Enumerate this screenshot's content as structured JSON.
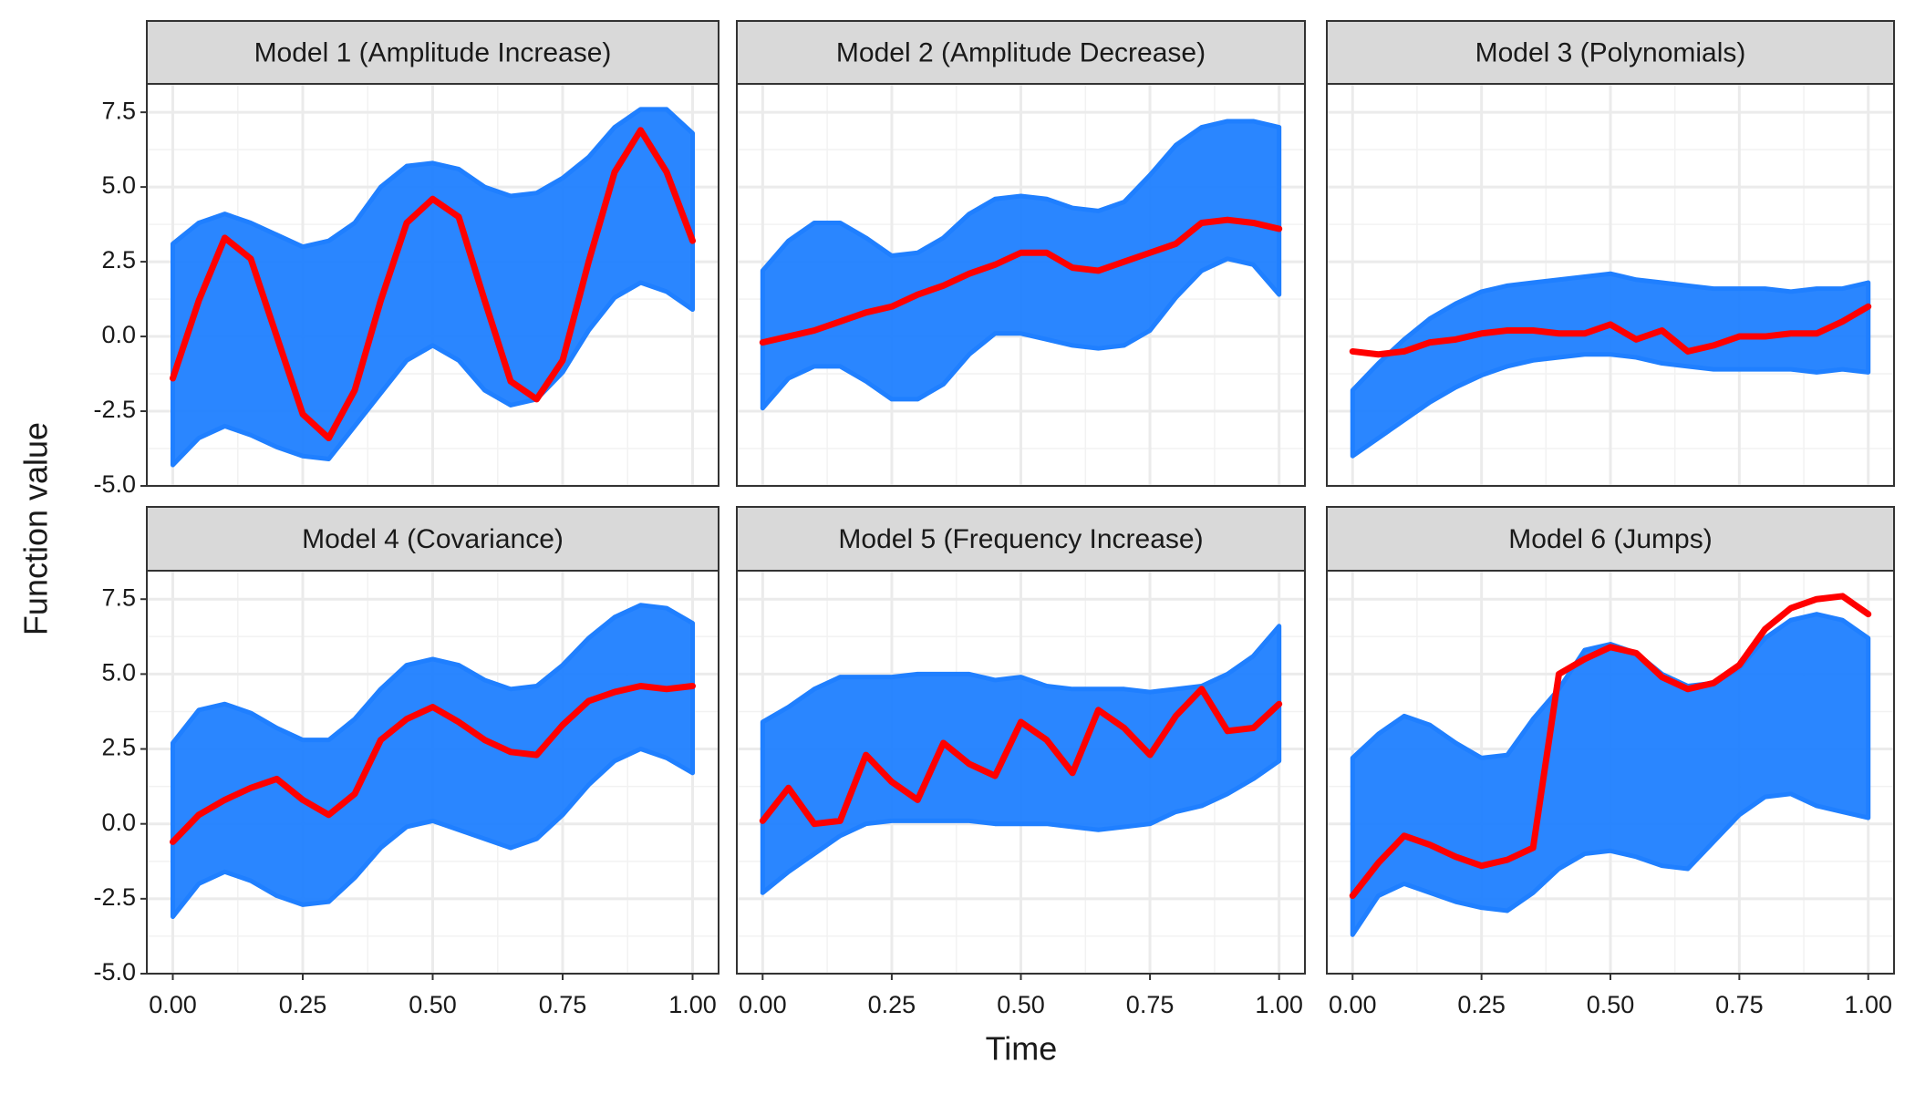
{
  "axes": {
    "xlabel": "Time",
    "ylabel": "Function value",
    "xlim": [
      -0.05,
      1.05
    ],
    "ylim": [
      -5,
      8.45
    ],
    "xticks": [
      {
        "value": 0,
        "label": "0.00"
      },
      {
        "value": 0.25,
        "label": "0.25"
      },
      {
        "value": 0.5,
        "label": "0.50"
      },
      {
        "value": 0.75,
        "label": "0.75"
      },
      {
        "value": 1,
        "label": "1.00"
      }
    ],
    "yticks": [
      {
        "value": -5,
        "label": "-5.0"
      },
      -2.5,
      {
        "value": 0,
        "label": "0.0"
      },
      2.5,
      {
        "value": 5,
        "label": "5.0"
      },
      7.5
    ],
    "grid": true
  },
  "chart_data": [
    {
      "type": "line",
      "title": "Model 1 (Amplitude Increase)",
      "band_color": "#1f7fff",
      "color": "#ff0000",
      "x": [
        0,
        0.05,
        0.1,
        0.15,
        0.2,
        0.25,
        0.3,
        0.35,
        0.4,
        0.45,
        0.5,
        0.55,
        0.6,
        0.65,
        0.7,
        0.75,
        0.8,
        0.85,
        0.9,
        0.95,
        1
      ],
      "upper": [
        3.1,
        3.8,
        4.1,
        3.8,
        3.4,
        3.0,
        3.2,
        3.8,
        5.0,
        5.7,
        5.8,
        5.6,
        5.0,
        4.7,
        4.8,
        5.3,
        6.0,
        7.0,
        7.6,
        7.6,
        6.8
      ],
      "lower": [
        -4.3,
        -3.4,
        -3.0,
        -3.3,
        -3.7,
        -4.0,
        -4.1,
        -3.0,
        -1.9,
        -0.8,
        -0.3,
        -0.8,
        -1.8,
        -2.3,
        -2.1,
        -1.2,
        0.2,
        1.3,
        1.8,
        1.5,
        0.9
      ],
      "values": [
        -1.4,
        1.2,
        3.3,
        2.6,
        0,
        -2.6,
        -3.4,
        -1.8,
        1.2,
        3.8,
        4.6,
        4.0,
        1.2,
        -1.5,
        -2.1,
        -0.8,
        2.5,
        5.5,
        6.9,
        5.5,
        3.2
      ]
    },
    {
      "type": "line",
      "title": "Model 2 (Amplitude Decrease)",
      "band_color": "#1f7fff",
      "color": "#ff0000",
      "x": [
        0,
        0.05,
        0.1,
        0.15,
        0.2,
        0.25,
        0.3,
        0.35,
        0.4,
        0.45,
        0.5,
        0.55,
        0.6,
        0.65,
        0.7,
        0.75,
        0.8,
        0.85,
        0.9,
        0.95,
        1
      ],
      "upper": [
        2.2,
        3.2,
        3.8,
        3.8,
        3.3,
        2.7,
        2.8,
        3.3,
        4.1,
        4.6,
        4.7,
        4.6,
        4.3,
        4.2,
        4.5,
        5.4,
        6.4,
        7.0,
        7.2,
        7.2,
        7.0
      ],
      "lower": [
        -2.4,
        -1.4,
        -1.0,
        -1.0,
        -1.5,
        -2.1,
        -2.1,
        -1.6,
        -0.6,
        0.1,
        0.1,
        -0.1,
        -0.3,
        -0.4,
        -0.3,
        0.2,
        1.3,
        2.2,
        2.6,
        2.4,
        1.4
      ],
      "values": [
        -0.2,
        0,
        0.2,
        0.5,
        0.8,
        1.0,
        1.4,
        1.7,
        2.1,
        2.4,
        2.8,
        2.8,
        2.3,
        2.2,
        2.5,
        2.8,
        3.1,
        3.8,
        3.9,
        3.8,
        3.6
      ]
    },
    {
      "type": "line",
      "title": "Model 3 (Polynomials)",
      "band_color": "#1f7fff",
      "color": "#ff0000",
      "x": [
        0,
        0.05,
        0.1,
        0.15,
        0.2,
        0.25,
        0.3,
        0.35,
        0.4,
        0.45,
        0.5,
        0.55,
        0.6,
        0.65,
        0.7,
        0.75,
        0.8,
        0.85,
        0.9,
        0.95,
        1
      ],
      "upper": [
        -1.8,
        -0.9,
        -0.1,
        0.6,
        1.1,
        1.5,
        1.7,
        1.8,
        1.9,
        2.0,
        2.1,
        1.9,
        1.8,
        1.7,
        1.6,
        1.6,
        1.6,
        1.5,
        1.6,
        1.6,
        1.8
      ],
      "lower": [
        -4.0,
        -3.4,
        -2.8,
        -2.2,
        -1.7,
        -1.3,
        -1.0,
        -0.8,
        -0.7,
        -0.6,
        -0.6,
        -0.7,
        -0.9,
        -1.0,
        -1.1,
        -1.1,
        -1.1,
        -1.1,
        -1.2,
        -1.1,
        -1.2
      ],
      "values": [
        -0.5,
        -0.6,
        -0.5,
        -0.2,
        -0.1,
        0.1,
        0.2,
        0.2,
        0.1,
        0.1,
        0.4,
        -0.1,
        0.2,
        -0.5,
        -0.3,
        0,
        0,
        0.1,
        0.1,
        0.5,
        1.0
      ]
    },
    {
      "type": "line",
      "title": "Model 4 (Covariance)",
      "band_color": "#1f7fff",
      "color": "#ff0000",
      "x": [
        0,
        0.05,
        0.1,
        0.15,
        0.2,
        0.25,
        0.3,
        0.35,
        0.4,
        0.45,
        0.5,
        0.55,
        0.6,
        0.65,
        0.7,
        0.75,
        0.8,
        0.85,
        0.9,
        0.95,
        1
      ],
      "upper": [
        2.7,
        3.8,
        4.0,
        3.7,
        3.2,
        2.8,
        2.8,
        3.5,
        4.5,
        5.3,
        5.5,
        5.3,
        4.8,
        4.5,
        4.6,
        5.3,
        6.2,
        6.9,
        7.3,
        7.2,
        6.7
      ],
      "lower": [
        -3.1,
        -2.0,
        -1.6,
        -1.9,
        -2.4,
        -2.7,
        -2.6,
        -1.8,
        -0.8,
        -0.1,
        0.1,
        -0.2,
        -0.5,
        -0.8,
        -0.5,
        0.3,
        1.3,
        2.1,
        2.5,
        2.2,
        1.7
      ],
      "values": [
        -0.6,
        0.3,
        0.8,
        1.2,
        1.5,
        0.8,
        0.3,
        1.0,
        2.8,
        3.5,
        3.9,
        3.4,
        2.8,
        2.4,
        2.3,
        3.3,
        4.1,
        4.4,
        4.6,
        4.5,
        4.6
      ]
    },
    {
      "type": "line",
      "title": "Model 5 (Frequency Increase)",
      "band_color": "#1f7fff",
      "color": "#ff0000",
      "x": [
        0,
        0.05,
        0.1,
        0.15,
        0.2,
        0.25,
        0.3,
        0.35,
        0.4,
        0.45,
        0.5,
        0.55,
        0.6,
        0.65,
        0.7,
        0.75,
        0.8,
        0.85,
        0.9,
        0.95,
        1
      ],
      "upper": [
        3.4,
        3.9,
        4.5,
        4.9,
        4.9,
        4.9,
        5.0,
        5.0,
        5.0,
        4.8,
        4.9,
        4.6,
        4.5,
        4.5,
        4.5,
        4.4,
        4.5,
        4.6,
        5.0,
        5.6,
        6.6
      ],
      "lower": [
        -2.3,
        -1.6,
        -1.0,
        -0.4,
        0.0,
        0.1,
        0.1,
        0.1,
        0.1,
        0.0,
        0.0,
        0.0,
        -0.1,
        -0.2,
        -0.1,
        0.0,
        0.4,
        0.6,
        1.0,
        1.5,
        2.1
      ],
      "values": [
        0.1,
        1.2,
        0,
        0.1,
        2.3,
        1.4,
        0.8,
        2.7,
        2.0,
        1.6,
        3.4,
        2.8,
        1.7,
        3.8,
        3.2,
        2.3,
        3.6,
        4.5,
        3.1,
        3.2,
        4.0
      ]
    },
    {
      "type": "line",
      "title": "Model 6 (Jumps)",
      "band_color": "#1f7fff",
      "color": "#ff0000",
      "x": [
        0,
        0.05,
        0.1,
        0.15,
        0.2,
        0.25,
        0.3,
        0.35,
        0.4,
        0.45,
        0.5,
        0.55,
        0.6,
        0.65,
        0.7,
        0.75,
        0.8,
        0.85,
        0.9,
        0.95,
        1
      ],
      "upper": [
        2.2,
        3.0,
        3.6,
        3.3,
        2.7,
        2.2,
        2.3,
        3.5,
        4.5,
        5.8,
        6.0,
        5.7,
        5.0,
        4.6,
        4.7,
        5.2,
        6.2,
        6.8,
        7.0,
        6.8,
        6.2
      ],
      "lower": [
        -3.7,
        -2.4,
        -2.0,
        -2.3,
        -2.6,
        -2.8,
        -2.9,
        -2.3,
        -1.5,
        -1.0,
        -0.9,
        -1.1,
        -1.4,
        -1.5,
        -0.6,
        0.3,
        0.9,
        1.0,
        0.6,
        0.4,
        0.2
      ],
      "values": [
        -2.4,
        -1.3,
        -0.4,
        -0.7,
        -1.1,
        -1.4,
        -1.2,
        -0.8,
        5.0,
        5.5,
        5.9,
        5.7,
        4.9,
        4.5,
        4.7,
        5.3,
        6.5,
        7.2,
        7.5,
        7.6,
        7.0
      ]
    }
  ]
}
